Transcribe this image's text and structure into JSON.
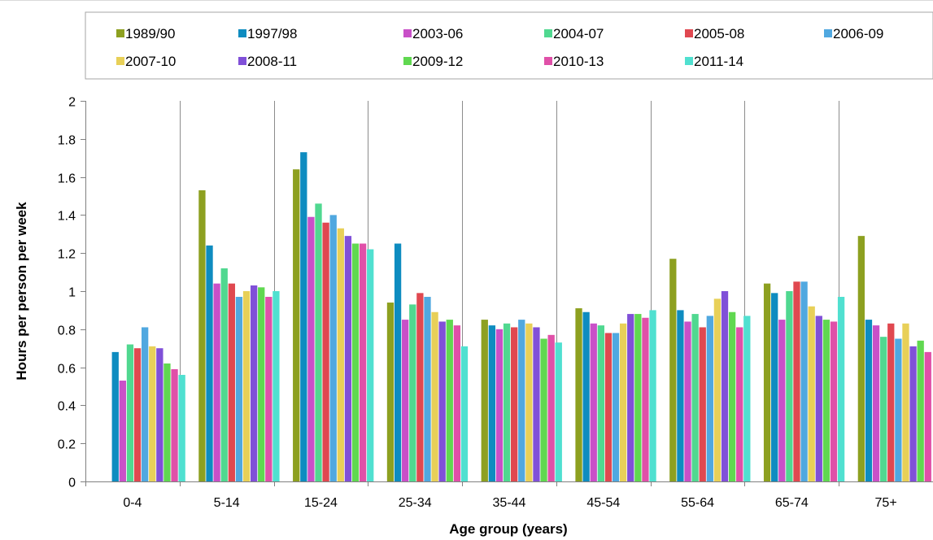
{
  "chart_data": {
    "type": "bar",
    "xlabel": "Age group (years)",
    "ylabel": "Hours per person  per week",
    "ylim": [
      0,
      2
    ],
    "yticks": [
      0,
      0.2,
      0.4,
      0.6,
      0.8,
      1,
      1.2,
      1.4,
      1.6,
      1.8,
      2
    ],
    "ytick_labels": [
      "0",
      "0.2",
      "0.4",
      "0.6",
      "0.8",
      "1",
      "1.2",
      "1.4",
      "1.6",
      "1.8",
      "2"
    ],
    "categories": [
      "0-4",
      "5-14",
      "15-24",
      "25-34",
      "35-44",
      "45-54",
      "55-64",
      "65-74",
      "75+"
    ],
    "legend_position": "top",
    "grid": "vertical separators between categories",
    "series": [
      {
        "name": "1989/90",
        "color": "#8DA020",
        "values": [
          0,
          1.53,
          1.64,
          0.94,
          0.85,
          0.91,
          1.17,
          1.04,
          1.29
        ]
      },
      {
        "name": "1997/98",
        "color": "#0E8CC0",
        "values": [
          0.68,
          1.24,
          1.73,
          1.25,
          0.82,
          0.89,
          0.9,
          0.99,
          0.85
        ]
      },
      {
        "name": "2003-06",
        "color": "#C950C8",
        "values": [
          0.53,
          1.04,
          1.39,
          0.85,
          0.8,
          0.83,
          0.84,
          0.85,
          0.82
        ]
      },
      {
        "name": "2004-07",
        "color": "#50D890",
        "values": [
          0.72,
          1.12,
          1.46,
          0.93,
          0.83,
          0.82,
          0.88,
          1.0,
          0.76
        ]
      },
      {
        "name": "2005-08",
        "color": "#E04850",
        "values": [
          0.7,
          1.04,
          1.36,
          0.99,
          0.81,
          0.78,
          0.81,
          1.05,
          0.83
        ]
      },
      {
        "name": "2006-09",
        "color": "#50A8E0",
        "values": [
          0.81,
          0.97,
          1.4,
          0.97,
          0.85,
          0.78,
          0.87,
          1.05,
          0.75
        ]
      },
      {
        "name": "2007-10",
        "color": "#E8D058",
        "values": [
          0.71,
          1.0,
          1.33,
          0.89,
          0.83,
          0.83,
          0.96,
          0.92,
          0.83
        ]
      },
      {
        "name": "2008-11",
        "color": "#8050D8",
        "values": [
          0.7,
          1.03,
          1.29,
          0.84,
          0.81,
          0.88,
          1.0,
          0.87,
          0.71
        ]
      },
      {
        "name": "2009-12",
        "color": "#60D850",
        "values": [
          0.62,
          1.02,
          1.25,
          0.85,
          0.75,
          0.88,
          0.89,
          0.85,
          0.74
        ]
      },
      {
        "name": "2010-13",
        "color": "#E050A8",
        "values": [
          0.59,
          0.97,
          1.25,
          0.82,
          0.77,
          0.86,
          0.81,
          0.84,
          0.68
        ]
      },
      {
        "name": "2011-14",
        "color": "#50E0D0",
        "values": [
          0.56,
          1.0,
          1.22,
          0.71,
          0.73,
          0.9,
          0.87,
          0.97,
          0
        ]
      }
    ]
  }
}
